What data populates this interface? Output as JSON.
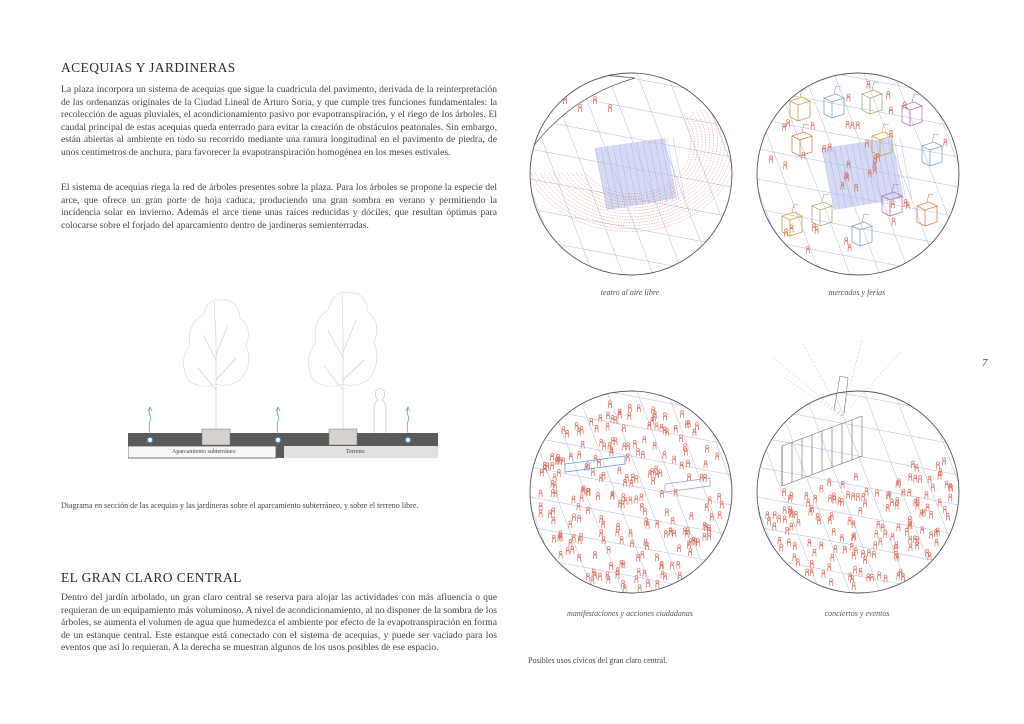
{
  "section_1": {
    "title": "ACEQUIAS Y  JARDINERAS",
    "paragraphs": [
      "La plaza incorpora un sistema de acequias que sigue la cuadrícula del pavimento, derivada de la reinterpretación de las ordenanzas originales de la Ciudad Lineal de Arturo Soria, y que cumple tres funciones fundamentales: la recolección de aguas pluviales, el acondicionamiento pasivo por evapotranspiración, y el riego de los árboles. El caudal principal de estas acequias queda enterrado para evitar la creación de obstáculos peatonales. Sin embargo, están abiertas al ambiente en todo su recorrido mediante una ranura longitudinal en el pavimento de piedra, de unos centímetros de anchura, para favorecer la evapotranspiración homogénea en los meses estivales.",
      "El sistema de acequias riega la red de árboles presentes sobre la plaza. Para los árboles se propone la especie del arce, que ofrece un gran porte de hoja caduca, produciendo una gran sombra en verano y permitiendo la incidencia solar en invierno. Además el arce tiene unas raíces reducidas y dóciles, que resultan óptimas para colocarse sobre el forjado del aparcamiento dentro de jardineras semienterradas."
    ]
  },
  "section_diagram": {
    "label_left": "Aparcamiento subterráneo",
    "label_right": "Terreno",
    "caption": "Diagrama en sección de las acequias y las jardineras sobre el aparcamiento subterráneo, y sobre el terreno libre."
  },
  "section_2": {
    "title": "EL GRAN CLARO CENTRAL",
    "paragraphs": [
      "Dentro del jardín arbolado, un gran claro central se reserva para alojar las actividades con más afluencia o que requieran de un equipamiento más voluminoso. A nivel de acondicionamiento, al no disponer de la sombra de los árboles, se aumenta el volumen de agua que humedezca el ambiente por efecto de la evapotranspiración en forma de un estanque central. Este estanque está conectado con el sistema de acequias, y puede ser vaciado para los eventos que así lo requieran. A la derecha se muestran algunos de los usos posibles de ese espacio."
    ]
  },
  "uses": {
    "circles": [
      {
        "caption": "teatro al aire libre"
      },
      {
        "caption": "mercados y ferias"
      },
      {
        "caption": "manifestaciones y acciones ciudadanas"
      },
      {
        "caption": "conciertos y eventos"
      }
    ],
    "caption": "Posibles usos cívicos del gran claro central."
  },
  "page_number": "7",
  "colors": {
    "people": "#d9705f",
    "grid": "#9aa3d6",
    "pond": "#b9c3ec",
    "stalls": [
      "#c9a040",
      "#7aa8c4",
      "#9cb36a",
      "#c26fb0",
      "#d68050"
    ],
    "ground_dark": "#5a5a5a",
    "ground_light": "#e3e1dd",
    "water": "#5ea0d8"
  }
}
